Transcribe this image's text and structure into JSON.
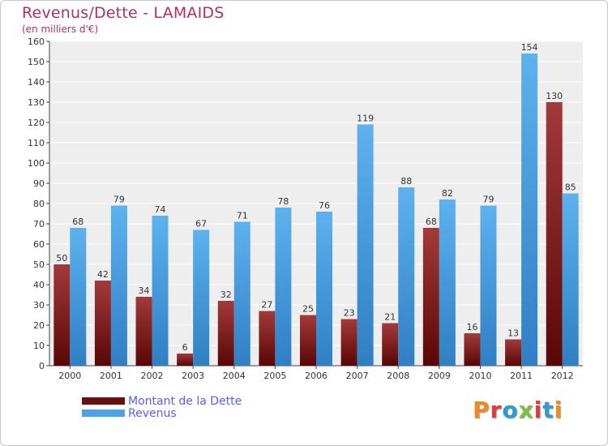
{
  "title": "Revenus/Dette - LAMAIDS",
  "subtitle": "(en milliers d'€)",
  "logo_text": "Proxiti",
  "colors": {
    "dette": "#7a1c1c",
    "revenus": "#4aa3e6",
    "title": "#b03060",
    "legend_text": "#5a5aff"
  },
  "chart_data": {
    "type": "bar",
    "categories": [
      "2000",
      "2001",
      "2002",
      "2003",
      "2004",
      "2005",
      "2006",
      "2007",
      "2008",
      "2009",
      "2010",
      "2011",
      "2012"
    ],
    "series": [
      {
        "name": "Montant de la Dette",
        "values": [
          50,
          42,
          34,
          6,
          32,
          27,
          25,
          23,
          21,
          68,
          16,
          13,
          130
        ]
      },
      {
        "name": "Revenus",
        "values": [
          68,
          79,
          74,
          67,
          71,
          78,
          76,
          119,
          88,
          82,
          79,
          154,
          85
        ]
      }
    ],
    "ylim": [
      0,
      160
    ],
    "yticks": [
      0,
      10,
      20,
      30,
      40,
      50,
      60,
      70,
      80,
      90,
      100,
      110,
      120,
      130,
      140,
      150,
      160
    ],
    "grid": true,
    "legend_position": "bottom-left"
  }
}
